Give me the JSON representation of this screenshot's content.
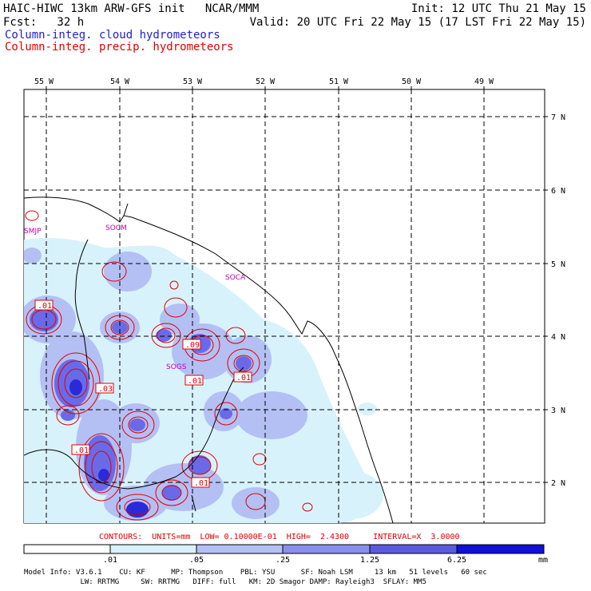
{
  "header": {
    "left_line1": "HAIC-HIWC 13km ARW-GFS init   NCAR/MMM",
    "left_line2": "Fcst:   32 h",
    "right_line1": "Init: 12 UTC Thu 21 May 15",
    "right_line2": "Valid: 20 UTC Fri 22 May 15 (17 LST Fri 22 May 15)",
    "legend_cloud": "Column-integ. cloud hydrometeors",
    "legend_precip": "Column-integ. precip. hydrometeors",
    "cloud_color": "#2020d0",
    "precip_color": "#e00000"
  },
  "map": {
    "lon_labels": [
      "55 W",
      "54 W",
      "53 W",
      "52 W",
      "51 W",
      "50 W",
      "49 W"
    ],
    "lat_labels": [
      "7 N",
      "6 N",
      "5 N",
      "4 N",
      "3 N",
      "2 N"
    ],
    "stations": [
      "SMJP",
      "SOCM",
      "SOCA",
      "SOGS"
    ],
    "contour_labels": [
      ".01",
      ".09",
      ".03",
      ".01",
      ".01",
      ".01",
      ".01"
    ]
  },
  "contours_info": "CONTOURS:  UNITS=mm  LOW= 0.10000E-01  HIGH=  2.4300     INTERVAL=X  3.0000",
  "colorbar": {
    "labels": [
      ".01",
      ".05",
      ".25",
      "1.25",
      "6.25"
    ],
    "units": "mm",
    "colors": [
      "#ffffff",
      "#d8f2fb",
      "#b4bff4",
      "#8a8fee",
      "#5a5ae0",
      "#1010d8"
    ]
  },
  "footer": {
    "line1": "Model Info: V3.6.1    CU: KF      MP: Thompson    PBL: YSU      SF: Noah LSM     13 km   51 levels   60 sec",
    "line2": "             LW: RRTMG     SW: RRTMG   DIFF: full   KM: 2D Smagor DAMP: Rayleigh3  SFLAY: MM5"
  }
}
